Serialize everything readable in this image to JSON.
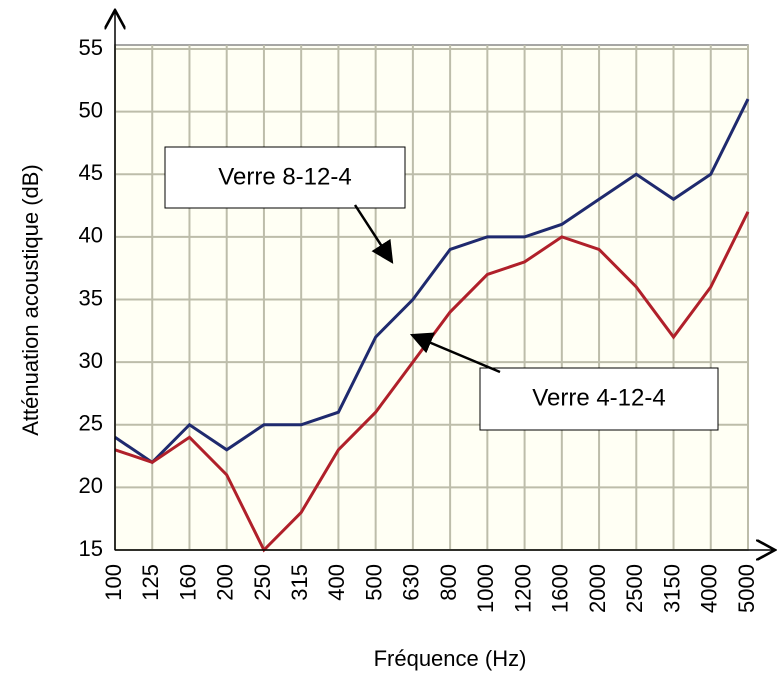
{
  "chart_data": {
    "type": "line",
    "x_label": "Fréquence (Hz)",
    "y_label": "Atténuation acoustique (dB)",
    "categories": [
      "100",
      "125",
      "160",
      "200",
      "250",
      "315",
      "400",
      "500",
      "630",
      "800",
      "1000",
      "1200",
      "1600",
      "2000",
      "2500",
      "3150",
      "4000",
      "5000"
    ],
    "series": [
      {
        "name": "Verre 8-12-4",
        "color": "#1f2a6e",
        "values": [
          24,
          22,
          25,
          23,
          25,
          25,
          26,
          32,
          35,
          39,
          40,
          40,
          41,
          43,
          45,
          43,
          45,
          51
        ]
      },
      {
        "name": "Verre 4-12-4",
        "color": "#b0202a",
        "values": [
          23,
          22,
          24,
          21,
          15,
          18,
          23,
          26,
          30,
          34,
          37,
          38,
          40,
          39,
          36,
          32,
          36,
          42
        ]
      }
    ],
    "ylim": [
      15,
      55
    ],
    "yticks": [
      15,
      20,
      25,
      30,
      35,
      40,
      45,
      50,
      55
    ],
    "grid": true
  }
}
